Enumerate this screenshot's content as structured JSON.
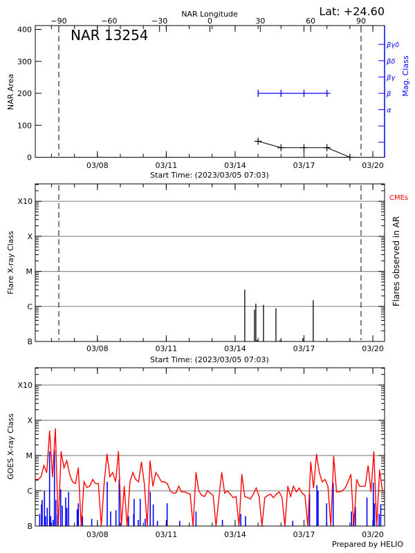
{
  "header": {
    "lat_label": "Lat: +24.60",
    "footer": "Prepared by HELIO"
  },
  "colors": {
    "goes_long": "#ff0000",
    "goes_short": "#0000ff",
    "mag_class": "#0000ff",
    "cme_label": "#ff0000",
    "grid": "#8c8c8c"
  },
  "chart_data": [
    {
      "id": "nar",
      "type": "line",
      "title": "NAR 13254",
      "xlabel": "Start Time: (2023/03/05 07:03)",
      "xlim": [
        "03/05 07:03",
        "03/20 12:15"
      ],
      "xticks": [
        "03/08",
        "03/11",
        "03/14",
        "03/17",
        "03/20"
      ],
      "xminor_ticks": [
        "03/06",
        "03/07",
        "03/08",
        "03/09",
        "03/10",
        "03/11",
        "03/12",
        "03/13",
        "03/14",
        "03/15",
        "03/16",
        "03/17",
        "03/18",
        "03/19",
        "03/20"
      ],
      "top_xlabel": "NAR Longitude",
      "top_xlim": [
        -104,
        104
      ],
      "top_xticks": [
        -90,
        -60,
        -30,
        0,
        30,
        60,
        90
      ],
      "limb_longitudes": [
        -90,
        90
      ],
      "ylabel": "NAR Area",
      "ylim": [
        0,
        400
      ],
      "yticks": [
        0,
        100,
        200,
        300,
        400
      ],
      "y2label": "Mag. Class",
      "y2ticks": [
        "",
        "",
        "α",
        "β",
        "βγ",
        "βδ",
        "βγδ"
      ],
      "area": {
        "times": [
          "03/15 00:00",
          "03/16 00:00",
          "03/17 00:00",
          "03/18 00:00",
          "03/19 00:00"
        ],
        "values": [
          50,
          30,
          30,
          30,
          0
        ]
      },
      "mag_class": {
        "times": [
          "03/15 00:00",
          "03/16 00:00",
          "03/17 00:00",
          "03/18 00:00"
        ],
        "values": [
          "β",
          "β",
          "β",
          "β"
        ]
      }
    },
    {
      "id": "flares",
      "type": "bar",
      "xlabel": "Start Time: (2023/03/05 07:03)",
      "xticks": [
        "03/08",
        "03/11",
        "03/14",
        "03/17",
        "03/20"
      ],
      "ylabel": "Flare X-ray Class",
      "yticks": [
        "B",
        "C",
        "M",
        "X",
        "X10"
      ],
      "y2label": "Flares observed in AR",
      "cme_label": "CMEs",
      "events": [
        {
          "time": "03/14 10:05",
          "class": "C3.0"
        },
        {
          "time": "03/14 20:15",
          "class": "B8.1"
        },
        {
          "time": "03/14 21:40",
          "class": "C1.2"
        },
        {
          "time": "03/14 23:05",
          "class": "B1.1"
        },
        {
          "time": "03/15 05:40",
          "class": "C1.1"
        },
        {
          "time": "03/15 18:40",
          "class": "B8.9"
        },
        {
          "time": "03/15 22:55",
          "class": "B1.1"
        },
        {
          "time": "03/16 22:50",
          "class": "B1.25"
        },
        {
          "time": "03/17 09:40",
          "class": "C1.5"
        }
      ]
    },
    {
      "id": "goes",
      "type": "line",
      "xticks": [
        "03/08",
        "03/11",
        "03/14",
        "03/17",
        "03/20"
      ],
      "ylabel": "GOES X-ray Class",
      "yticks": [
        "B",
        "C",
        "M",
        "X",
        "X10"
      ],
      "series": [
        {
          "color": "#ff0000",
          "times": [
            "03/05 07:03",
            "03/05 10:03",
            "03/05 13:03",
            "03/05 16:03",
            "03/05 19:03",
            "03/05 22:03",
            "03/06 01:03",
            "03/06 04:03",
            "03/06 07:03",
            "03/06 10:03",
            "03/06 13:03",
            "03/06 16:03",
            "03/06 19:03",
            "03/06 22:03",
            "03/07 01:03",
            "03/07 04:03",
            "03/07 07:03",
            "03/07 10:03",
            "03/07 13:03",
            "03/07 16:03",
            "03/07 19:03",
            "03/07 22:03",
            "03/08 01:03",
            "03/08 04:03",
            "03/08 07:03",
            "03/08 10:03",
            "03/08 13:03",
            "03/08 16:03",
            "03/08 19:03",
            "03/08 22:03",
            "03/09 01:03",
            "03/09 04:03",
            "03/09 07:03",
            "03/09 10:03",
            "03/09 13:03",
            "03/09 16:03",
            "03/09 19:03",
            "03/09 22:03",
            "03/10 01:03",
            "03/10 04:03",
            "03/10 07:03",
            "03/10 10:03",
            "03/10 13:03",
            "03/10 16:03",
            "03/10 19:03",
            "03/10 22:03",
            "03/11 01:03",
            "03/11 04:03",
            "03/11 07:03",
            "03/11 10:03",
            "03/11 13:03",
            "03/11 16:03",
            "03/11 19:03",
            "03/11 22:03",
            "03/12 01:03",
            "03/12 04:03",
            "03/12 07:03",
            "03/12 10:03",
            "03/12 13:03",
            "03/12 16:03",
            "03/12 19:03",
            "03/12 22:03",
            "03/13 01:03",
            "03/13 04:03",
            "03/13 07:03",
            "03/13 10:03",
            "03/13 13:03",
            "03/13 16:03",
            "03/13 19:03",
            "03/13 22:03",
            "03/14 01:03",
            "03/14 04:03",
            "03/14 07:03",
            "03/14 10:03",
            "03/14 13:03",
            "03/14 16:03",
            "03/14 19:03",
            "03/14 22:03",
            "03/15 01:03",
            "03/15 04:03",
            "03/15 07:03",
            "03/15 10:03",
            "03/15 13:03",
            "03/15 16:03",
            "03/15 19:03",
            "03/15 22:03",
            "03/16 01:03",
            "03/16 04:03",
            "03/16 07:03",
            "03/16 10:03",
            "03/16 13:03",
            "03/16 16:03",
            "03/16 19:03",
            "03/16 22:03",
            "03/17 01:03",
            "03/17 04:03",
            "03/17 07:03",
            "03/17 10:03",
            "03/17 13:03",
            "03/17 16:03",
            "03/17 19:03",
            "03/17 22:03",
            "03/18 01:03",
            "03/18 04:03",
            "03/18 07:03",
            "03/18 10:03",
            "03/18 13:03",
            "03/18 16:03",
            "03/18 19:03",
            "03/18 22:03",
            "03/19 01:03",
            "03/19 04:03",
            "03/19 07:03",
            "03/19 10:03",
            "03/19 13:03",
            "03/19 16:03",
            "03/19 19:03",
            "03/19 22:03",
            "03/20 01:03",
            "03/20 04:03",
            "03/20 07:03",
            "03/20 10:03"
          ],
          "values": [
            "C2.1",
            "C2.1",
            "C2.5",
            "C5.2",
            "C3.3",
            "M5.0",
            "C2.5",
            "M5.8",
            "B1.0",
            "M1.3",
            "C4.5",
            "C7.1",
            "C2.9",
            "C1.8",
            "C1.6",
            "C4.5",
            "B1.0",
            "C1.8",
            "C1.25",
            "C1.35",
            "C2.1",
            "C1.6",
            "C1.6",
            "B1.0",
            "C1.6",
            "M1.1",
            "C2.5",
            "C3.3",
            "C1.8",
            "M1.3",
            "B1.0",
            "C1.35",
            "B1.0",
            "C1.8",
            "C3.3",
            "C2.1",
            "C1.8",
            "C6.6",
            "C1.6",
            "B1.0",
            "C7.1",
            "C1.35",
            "C3.3",
            "C2.5",
            "C1.8",
            "C1.8",
            "C1.6",
            "C1.0",
            "B8.6",
            "B8.6",
            "C1.35",
            "B9.3",
            "B9.3",
            "B8.6",
            "B8.0",
            "B1.0",
            "C3.3",
            "C1.0",
            "B7.4",
            "B6.9",
            "C1.0",
            "B8.6",
            "B7.4",
            "B1.0",
            "B6.4",
            "C3.3",
            "B8.6",
            "C1.0",
            "B8.0",
            "B6.4",
            "B6.9",
            "B1.0",
            "C2.9",
            "B6.9",
            "B6.4",
            "B5.9",
            "B8.0",
            "C1.2",
            "B6.9",
            "B1.0",
            "B6.4",
            "B7.4",
            "B8.0",
            "B6.4",
            "B8.0",
            "B9.3",
            "B6.4",
            "B1.0",
            "C1.35",
            "B6.9",
            "C1.35",
            "B9.3",
            "C1.2",
            "B8.6",
            "B7.4",
            "B1.0",
            "C6.6",
            "C1.2",
            "M1.1",
            "C3.3",
            "C1.8",
            "C2.1",
            "C1.35",
            "B1.0",
            "C9.6",
            "B9.3",
            "B9.3",
            "C1.0",
            "C1.2",
            "C1.8",
            "C2.9",
            "B1.0",
            "C2.1",
            "C1.35",
            "C1.35",
            "C1.35",
            "C5.2",
            "B9.3",
            "M1.3",
            "B1.0",
            "C3.9",
            "C1.0"
          ]
        },
        {
          "color": "#0000ff",
          "times": [
            "03/05 11:40",
            "03/05 13:35",
            "03/05 14:15",
            "03/05 16:40",
            "03/05 17:50",
            "03/05 19:35",
            "03/05 22:00",
            "03/05 23:10",
            "03/06 01:40",
            "03/06 03:05",
            "03/06 04:35",
            "03/06 06:25",
            "03/06 09:35",
            "03/06 11:15",
            "03/06 14:50",
            "03/06 16:05",
            "03/06 17:55",
            "03/07 02:55",
            "03/07 04:05",
            "03/07 08:25",
            "03/07 18:05",
            "03/08 10:15",
            "03/08 13:50",
            "03/08 19:25",
            "03/08 22:45",
            "03/09 00:40",
            "03/09 08:35",
            "03/09 13:55",
            "03/09 14:25",
            "03/09 18:45",
            "03/09 20:45",
            "03/10 01:55",
            "03/10 07:15",
            "03/10 10:25",
            "03/10 14:45",
            "03/11 00:55",
            "03/11 14:05",
            "03/12 07:05",
            "03/13 10:45",
            "03/14 05:55",
            "03/14 10:50",
            "03/16 12:15",
            "03/17 05:50",
            "03/17 13:30",
            "03/17 14:45",
            "03/17 23:40",
            "03/18 06:30",
            "03/19 01:40",
            "03/19 03:35",
            "03/19 05:45",
            "03/19 17:50",
            "03/20 00:30",
            "03/20 01:45",
            "03/20 06:35",
            "03/20 08:15"
          ],
          "values": [
            "B2.2",
            "B4.1",
            "B5.5",
            "C1.0",
            "B1.9",
            "B3.3",
            "M1.3",
            "B1.9",
            "B1.5",
            "M1.4",
            "B5.5",
            "B2.2",
            "C1.1",
            "B3.8",
            "B6.4",
            "B3.3",
            "B9.3",
            "B3.0",
            "B4.4",
            "B1.9",
            "B1.6",
            "C1.8",
            "B2.6",
            "B2.8",
            "C2.1",
            "B1.2",
            "B1.9",
            "B2.2",
            "B5.9",
            "B1.5",
            "B5.9",
            "B1.6",
            "B9.3",
            "B4.1",
            "B1.4",
            "B4.4",
            "B1.4",
            "B2.6",
            "B1.5",
            "B2.2",
            "B1.9",
            "B1.4",
            "B8.0",
            "C1.45",
            "C1.0",
            "B4.4",
            "C1.7",
            "B2.6",
            "B2.2",
            "B3.5",
            "B6.4",
            "C1.7",
            "B4.4",
            "B2.2",
            "B4.1"
          ]
        }
      ]
    }
  ]
}
